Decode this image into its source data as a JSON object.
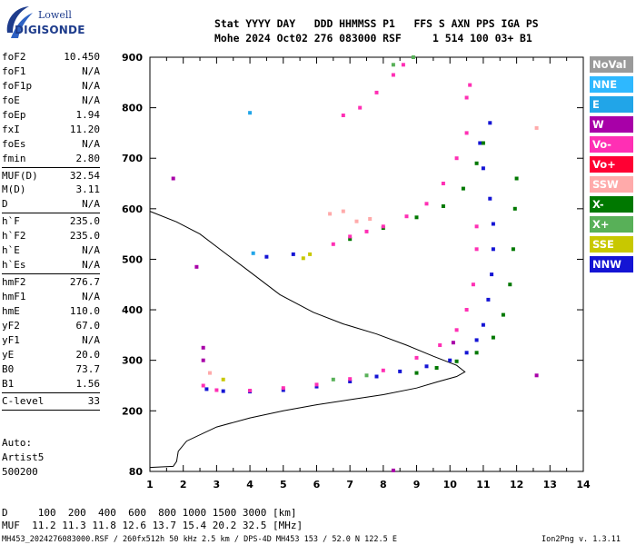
{
  "logo": {
    "top": "Lowell",
    "bottom": "DIGISONDE"
  },
  "header": {
    "line1": "Stat YYYY DAY   DDD HHMMSS P1   FFS S AXN PPS IGA PS",
    "line2": "Mohe 2024 Oct02 276 083000 RSF     1 514 100 03+ B1"
  },
  "params": [
    {
      "name": "foF2",
      "value": "10.450"
    },
    {
      "name": "foF1",
      "value": "N/A"
    },
    {
      "name": "foF1p",
      "value": "N/A"
    },
    {
      "name": "foE",
      "value": "N/A"
    },
    {
      "name": "foEp",
      "value": "1.94"
    },
    {
      "name": "fxI",
      "value": "11.20"
    },
    {
      "name": "foEs",
      "value": "N/A"
    },
    {
      "name": "fmin",
      "value": "2.80"
    },
    {
      "sep": true
    },
    {
      "name": "MUF(D)",
      "value": "32.54"
    },
    {
      "name": "M(D)",
      "value": "3.11"
    },
    {
      "name": "D",
      "value": "N/A"
    },
    {
      "sep": true
    },
    {
      "name": "h`F",
      "value": "235.0"
    },
    {
      "name": "h`F2",
      "value": "235.0"
    },
    {
      "name": "h`E",
      "value": "N/A"
    },
    {
      "name": "h`Es",
      "value": "N/A"
    },
    {
      "sep": true
    },
    {
      "name": "hmF2",
      "value": "276.7"
    },
    {
      "name": "hmF1",
      "value": "N/A"
    },
    {
      "name": "hmE",
      "value": "110.0"
    },
    {
      "name": "yF2",
      "value": "67.0"
    },
    {
      "name": "yF1",
      "value": "N/A"
    },
    {
      "name": "yE",
      "value": "20.0"
    },
    {
      "name": "B0",
      "value": "73.7"
    },
    {
      "name": "B1",
      "value": "1.56"
    },
    {
      "sep": true
    },
    {
      "name": "C-level",
      "value": "33"
    },
    {
      "sep": true
    }
  ],
  "autoscale": {
    "line1": "Auto:",
    "line2": "Artist5",
    "line3": "500200"
  },
  "legend": [
    {
      "label": "NoVal",
      "color": "#9a9a9a"
    },
    {
      "label": "NNE",
      "color": "#2eb8ff"
    },
    {
      "label": "E",
      "color": "#21a5e8"
    },
    {
      "label": "W",
      "color": "#a800a8"
    },
    {
      "label": "Vo-",
      "color": "#ff2fb4"
    },
    {
      "label": "Vo+",
      "color": "#ff0033"
    },
    {
      "label": "SSW",
      "color": "#ffaaaa"
    },
    {
      "label": "X-",
      "color": "#007800"
    },
    {
      "label": "X+",
      "color": "#58b058"
    },
    {
      "label": "SSE",
      "color": "#c8c800"
    },
    {
      "label": "NNW",
      "color": "#1414d4"
    }
  ],
  "muf_table": {
    "row1": "D     100  200  400  600  800 1000 1500 3000 [km]",
    "row2": "MUF  11.2 11.3 11.8 12.6 13.7 15.4 20.2 32.5 [MHz]"
  },
  "footer": {
    "left": "MH453_2024276083000.RSF / 260fx512h 50 kHz 2.5 km / DPS-4D MH453 153 / 52.0 N 122.5 E",
    "right": "Ion2Png v. 1.3.11"
  },
  "chart_data": {
    "type": "scatter",
    "xlim": [
      1,
      14
    ],
    "ylim": [
      80,
      900
    ],
    "x_ticks": [
      1,
      2,
      3,
      4,
      5,
      6,
      7,
      8,
      9,
      10,
      11,
      12,
      13,
      14
    ],
    "y_ticks": [
      80,
      200,
      300,
      400,
      500,
      600,
      700,
      800,
      900
    ],
    "grid": false,
    "legend_position": "right",
    "profile_line": {
      "name": "",
      "points": [
        [
          1.0,
          88
        ],
        [
          1.7,
          90
        ],
        [
          1.8,
          100
        ],
        [
          1.85,
          120
        ],
        [
          2.1,
          140
        ],
        [
          3.0,
          168
        ],
        [
          4.0,
          186
        ],
        [
          5.0,
          200
        ],
        [
          6.0,
          212
        ],
        [
          7.0,
          222
        ],
        [
          8.0,
          232
        ],
        [
          9.0,
          245
        ],
        [
          9.6,
          257
        ],
        [
          10.2,
          268
        ],
        [
          10.45,
          277
        ],
        [
          10.2,
          290
        ],
        [
          9.5,
          308
        ],
        [
          8.7,
          330
        ],
        [
          7.8,
          352
        ],
        [
          6.8,
          372
        ],
        [
          5.9,
          395
        ],
        [
          4.9,
          430
        ],
        [
          4.0,
          475
        ],
        [
          3.2,
          515
        ],
        [
          2.5,
          550
        ],
        [
          1.8,
          574
        ],
        [
          1.0,
          595
        ]
      ]
    },
    "series": [
      {
        "name": "NNW",
        "color": "#1414d4",
        "points": [
          [
            2.7,
            243
          ],
          [
            3.2,
            239
          ],
          [
            4.0,
            238
          ],
          [
            5.0,
            241
          ],
          [
            6.0,
            248
          ],
          [
            7.0,
            258
          ],
          [
            7.8,
            268
          ],
          [
            8.5,
            278
          ],
          [
            9.3,
            288
          ],
          [
            10.0,
            300
          ],
          [
            10.5,
            315
          ],
          [
            10.8,
            340
          ],
          [
            11.0,
            370
          ],
          [
            11.15,
            420
          ],
          [
            11.25,
            470
          ],
          [
            11.3,
            520
          ],
          [
            11.3,
            570
          ],
          [
            11.2,
            620
          ],
          [
            11.0,
            680
          ],
          [
            10.9,
            730
          ],
          [
            11.2,
            770
          ],
          [
            4.5,
            505
          ],
          [
            5.3,
            510
          ]
        ]
      },
      {
        "name": "X-",
        "color": "#007800",
        "points": [
          [
            9.0,
            275
          ],
          [
            9.6,
            285
          ],
          [
            10.2,
            298
          ],
          [
            10.8,
            315
          ],
          [
            11.3,
            345
          ],
          [
            11.6,
            390
          ],
          [
            11.8,
            450
          ],
          [
            11.9,
            520
          ],
          [
            11.95,
            600
          ],
          [
            12.0,
            660
          ],
          [
            7.0,
            540
          ],
          [
            8.0,
            562
          ],
          [
            9.0,
            583
          ],
          [
            9.8,
            605
          ],
          [
            10.4,
            640
          ],
          [
            10.8,
            690
          ],
          [
            11.0,
            730
          ]
        ]
      },
      {
        "name": "X+",
        "color": "#58b058",
        "points": [
          [
            8.3,
            885
          ],
          [
            8.9,
            900
          ],
          [
            6.5,
            262
          ],
          [
            7.5,
            270
          ]
        ]
      },
      {
        "name": "Vo-",
        "color": "#ff2fb4",
        "points": [
          [
            2.6,
            250
          ],
          [
            3.0,
            241
          ],
          [
            4.0,
            240
          ],
          [
            5.0,
            245
          ],
          [
            6.0,
            252
          ],
          [
            7.0,
            263
          ],
          [
            8.0,
            280
          ],
          [
            9.0,
            305
          ],
          [
            9.7,
            330
          ],
          [
            10.2,
            360
          ],
          [
            10.5,
            400
          ],
          [
            10.7,
            450
          ],
          [
            10.8,
            520
          ],
          [
            10.8,
            565
          ],
          [
            6.5,
            530
          ],
          [
            7.0,
            545
          ],
          [
            7.5,
            555
          ],
          [
            8.0,
            565
          ],
          [
            8.7,
            585
          ],
          [
            9.3,
            610
          ],
          [
            9.8,
            650
          ],
          [
            10.2,
            700
          ],
          [
            10.5,
            750
          ],
          [
            6.8,
            785
          ],
          [
            7.3,
            800
          ],
          [
            7.8,
            830
          ],
          [
            8.3,
            865
          ],
          [
            8.6,
            885
          ],
          [
            10.5,
            820
          ],
          [
            10.6,
            845
          ]
        ]
      },
      {
        "name": "W",
        "color": "#a800a8",
        "points": [
          [
            1.7,
            660
          ],
          [
            2.6,
            325
          ],
          [
            2.6,
            300
          ],
          [
            10.1,
            335
          ],
          [
            12.6,
            270
          ],
          [
            2.4,
            485
          ],
          [
            8.3,
            82
          ]
        ]
      },
      {
        "name": "SSW",
        "color": "#ffaaaa",
        "points": [
          [
            6.4,
            590
          ],
          [
            6.8,
            595
          ],
          [
            7.2,
            575
          ],
          [
            7.6,
            580
          ],
          [
            12.6,
            760
          ],
          [
            2.8,
            275
          ]
        ]
      },
      {
        "name": "SSE",
        "color": "#c8c800",
        "points": [
          [
            5.8,
            510
          ],
          [
            5.6,
            502
          ],
          [
            3.2,
            262
          ]
        ]
      },
      {
        "name": "E",
        "color": "#21a5e8",
        "points": [
          [
            4.0,
            790
          ],
          [
            4.1,
            512
          ]
        ]
      }
    ]
  }
}
